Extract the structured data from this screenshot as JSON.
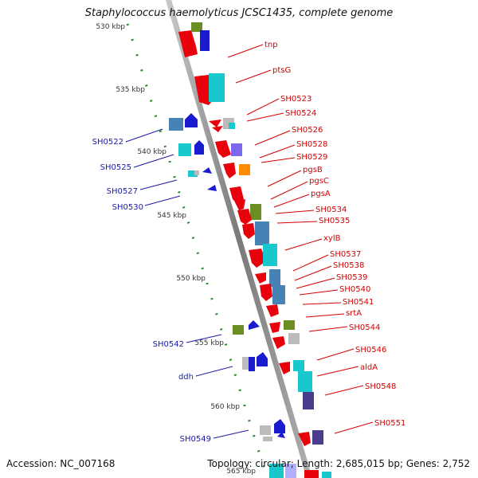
{
  "title": "Staphylococcus haemolyticus JCSC1435, complete genome",
  "footer": {
    "accession": "Accession: NC_007168",
    "summary": "Topology: circular; Length: 2,685,015 bp; Genes: 2,752"
  },
  "kbp_labels": [
    "530 kbp",
    "535 kbp",
    "540 kbp",
    "545 kbp",
    "550 kbp",
    "555 kbp",
    "560 kbp",
    "565 kbp"
  ],
  "genes_right": [
    "tnp",
    "ptsG",
    "SH0523",
    "SH0524",
    "SH0526",
    "SH0528",
    "SH0529",
    "pgsB",
    "pgsC",
    "pgsA",
    "SH0534",
    "SH0535",
    "xylB",
    "SH0537",
    "SH0538",
    "SH0539",
    "SH0540",
    "SH0541",
    "srtA",
    "SH0544",
    "SH0546",
    "aldA",
    "SH0548",
    "SH0551"
  ],
  "genes_left": [
    "SH0522",
    "SH0525",
    "SH0527",
    "SH0530",
    "SH0542",
    "ddh",
    "SH0549"
  ],
  "colors": {
    "forward_label": "#d40000",
    "reverse_label": "#1a1aa6",
    "backbone": "#8c8c8c",
    "tick": "#2e8b2e"
  }
}
